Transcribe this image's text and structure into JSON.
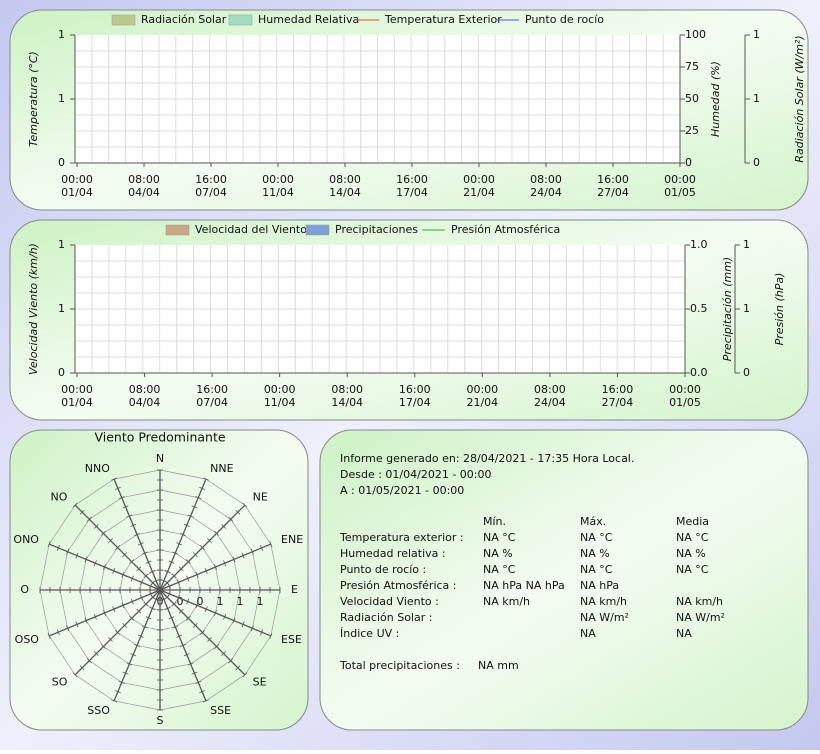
{
  "panels": [
    {
      "legend": [
        {
          "label": "Radiación Solar",
          "kind": "swatch",
          "color": "#b9c98c"
        },
        {
          "label": "Humedad Relativa",
          "kind": "swatch",
          "color": "#9fdcc0"
        },
        {
          "label": "Temperatura Exterior",
          "kind": "line",
          "color": "#e0503a"
        },
        {
          "label": "Punto de rocío",
          "kind": "line",
          "color": "#3a5ee0"
        }
      ],
      "left_axis": {
        "label": "Temperatura (°C)",
        "ticks": [
          "1",
          "1",
          "0"
        ]
      },
      "right_axes": [
        {
          "label": "Humedad (%)",
          "ticks": [
            "100",
            "75",
            "50",
            "25",
            "0"
          ]
        },
        {
          "label": "Radiación Solar (W/m²)",
          "ticks": [
            "1",
            "1",
            "0"
          ]
        }
      ],
      "x_ticks": [
        {
          "time": "00:00",
          "date": "01/04"
        },
        {
          "time": "08:00",
          "date": "04/04"
        },
        {
          "time": "16:00",
          "date": "07/04"
        },
        {
          "time": "00:00",
          "date": "11/04"
        },
        {
          "time": "08:00",
          "date": "14/04"
        },
        {
          "time": "16:00",
          "date": "17/04"
        },
        {
          "time": "00:00",
          "date": "21/04"
        },
        {
          "time": "08:00",
          "date": "24/04"
        },
        {
          "time": "16:00",
          "date": "27/04"
        },
        {
          "time": "00:00",
          "date": "01/05"
        }
      ]
    },
    {
      "legend": [
        {
          "label": "Velocidad del Viento",
          "kind": "swatch",
          "color": "#c9a882"
        },
        {
          "label": "Precipitaciones",
          "kind": "swatch",
          "color": "#7f9fd8"
        },
        {
          "label": "Presión Atmosférica",
          "kind": "line",
          "color": "#3aa83a"
        }
      ],
      "left_axis": {
        "label": "Velocidad Viento (km/h)",
        "ticks": [
          "1",
          "1",
          "0"
        ]
      },
      "right_axes": [
        {
          "label": "Precipitación (mm)",
          "ticks": [
            "1.0",
            "0.5",
            "0.0"
          ]
        },
        {
          "label": "Presión (hPa)",
          "ticks": [
            "1",
            "1",
            "0"
          ]
        }
      ],
      "x_ticks": [
        {
          "time": "00:00",
          "date": "01/04"
        },
        {
          "time": "08:00",
          "date": "04/04"
        },
        {
          "time": "16:00",
          "date": "07/04"
        },
        {
          "time": "00:00",
          "date": "11/04"
        },
        {
          "time": "08:00",
          "date": "14/04"
        },
        {
          "time": "16:00",
          "date": "17/04"
        },
        {
          "time": "00:00",
          "date": "21/04"
        },
        {
          "time": "08:00",
          "date": "24/04"
        },
        {
          "time": "16:00",
          "date": "27/04"
        },
        {
          "time": "00:00",
          "date": "01/05"
        }
      ]
    }
  ],
  "rose": {
    "title": "Viento Predominante",
    "directions": [
      "N",
      "NNE",
      "NE",
      "ENE",
      "E",
      "ESE",
      "SE",
      "SSE",
      "S",
      "SSO",
      "SO",
      "OSO",
      "O",
      "ONO",
      "NO",
      "NNO"
    ],
    "rings": [
      "0",
      "0",
      "0",
      "1",
      "1",
      "1"
    ]
  },
  "report": {
    "generated": "Informe generado en: 28/04/2021 - 17:35 Hora Local.",
    "from": "Desde : 01/04/2021 - 00:00",
    "to": "A : 01/05/2021 - 00:00",
    "headers": {
      "min": "Mín.",
      "max": "Máx.",
      "mean": "Media"
    },
    "rows": [
      {
        "label": "Temperatura exterior :",
        "min": "NA °C",
        "max": "NA °C",
        "mean": "NA °C"
      },
      {
        "label": "Humedad relativa :",
        "min": "NA %",
        "max": "NA %",
        "mean": "NA %"
      },
      {
        "label": "Punto de rocío :",
        "min": "NA °C",
        "max": "NA °C",
        "mean": "NA °C"
      },
      {
        "label": "Presión Atmosférica :",
        "min": "NA hPa NA hPa",
        "max": "NA hPa"
      },
      {
        "label": "Velocidad Viento :",
        "min": "NA km/h",
        "max": "NA km/h",
        "mean": "NA km/h"
      },
      {
        "label": "Radiación Solar :",
        "max": "NA W/m²",
        "mean": "NA W/m²"
      },
      {
        "label": "Índice UV :",
        "max": "NA",
        "mean": "NA"
      }
    ],
    "total_label": "Total precipitaciones :",
    "total_value": "NA mm"
  }
}
